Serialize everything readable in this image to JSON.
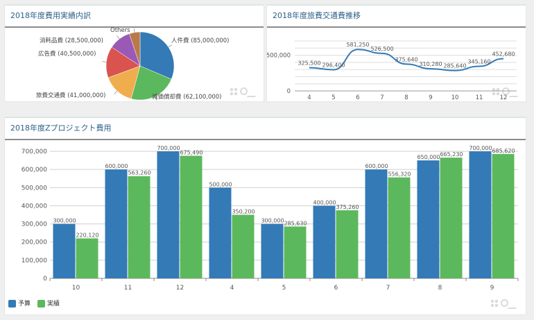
{
  "panels": {
    "pie_title": "2018年度費用実績内訳",
    "line_title": "2018年度旅費交通費推移",
    "bar_title": "2018年度Zプロジェクト費用"
  },
  "chart_data": [
    {
      "type": "pie",
      "title": "2018年度費用実績内訳",
      "slices": [
        {
          "label": "人件費 (85,000,000)",
          "value": 85000000,
          "color": "#337ab7"
        },
        {
          "label": "減価償却費 (62,100,000)",
          "value": 62100000,
          "color": "#5cb85c"
        },
        {
          "label": "旅費交通費 (41,000,000)",
          "value": 41000000,
          "color": "#f0ad4e"
        },
        {
          "label": "広告費 (40,500,000)",
          "value": 40500000,
          "color": "#d9534f"
        },
        {
          "label": "消耗品費 (28,500,000)",
          "value": 28500000,
          "color": "#9b59b6"
        },
        {
          "label": "Others",
          "value": 14000000,
          "color": "#b87a4b"
        }
      ]
    },
    {
      "type": "line",
      "title": "2018年度旅費交通費推移",
      "categories": [
        "4",
        "5",
        "6",
        "7",
        "8",
        "9",
        "10",
        "11",
        "12"
      ],
      "values": [
        325500,
        296400,
        581250,
        526500,
        375640,
        310280,
        285640,
        345160,
        452680
      ],
      "labels": [
        "325,500",
        "296,400",
        "581,250",
        "526,500",
        "375,640",
        "310,280",
        "285,640",
        "345,160",
        "452,680"
      ],
      "yticks": [
        "500,000",
        "0"
      ],
      "ylim": [
        0,
        700000
      ],
      "color": "#337ab7"
    },
    {
      "type": "bar",
      "title": "2018年度Zプロジェクト費用",
      "categories": [
        "10",
        "11",
        "12",
        "4",
        "5",
        "6",
        "7",
        "8",
        "9"
      ],
      "series": [
        {
          "name": "予算",
          "color": "#337ab7",
          "values": [
            300000,
            600000,
            700000,
            500000,
            300000,
            400000,
            600000,
            650000,
            700000
          ],
          "labels": [
            "300,000",
            "600,000",
            "700,000",
            "500,000",
            "300,000",
            "400,000",
            "600,000",
            "650,000",
            "700,000"
          ]
        },
        {
          "name": "実績",
          "color": "#5cb85c",
          "values": [
            220120,
            563260,
            675490,
            350200,
            285630,
            375260,
            556320,
            665230,
            685620
          ],
          "labels": [
            "220,120",
            "563,260",
            "675,490",
            "350,200",
            "285,630",
            "375,260",
            "556,320",
            "665,230",
            "685,620"
          ]
        }
      ],
      "yticks": [
        "0",
        "100,000",
        "200,000",
        "300,000",
        "400,000",
        "500,000",
        "600,000",
        "700,000"
      ],
      "ylim": [
        0,
        700000
      ],
      "legend": "bottom-left"
    }
  ]
}
